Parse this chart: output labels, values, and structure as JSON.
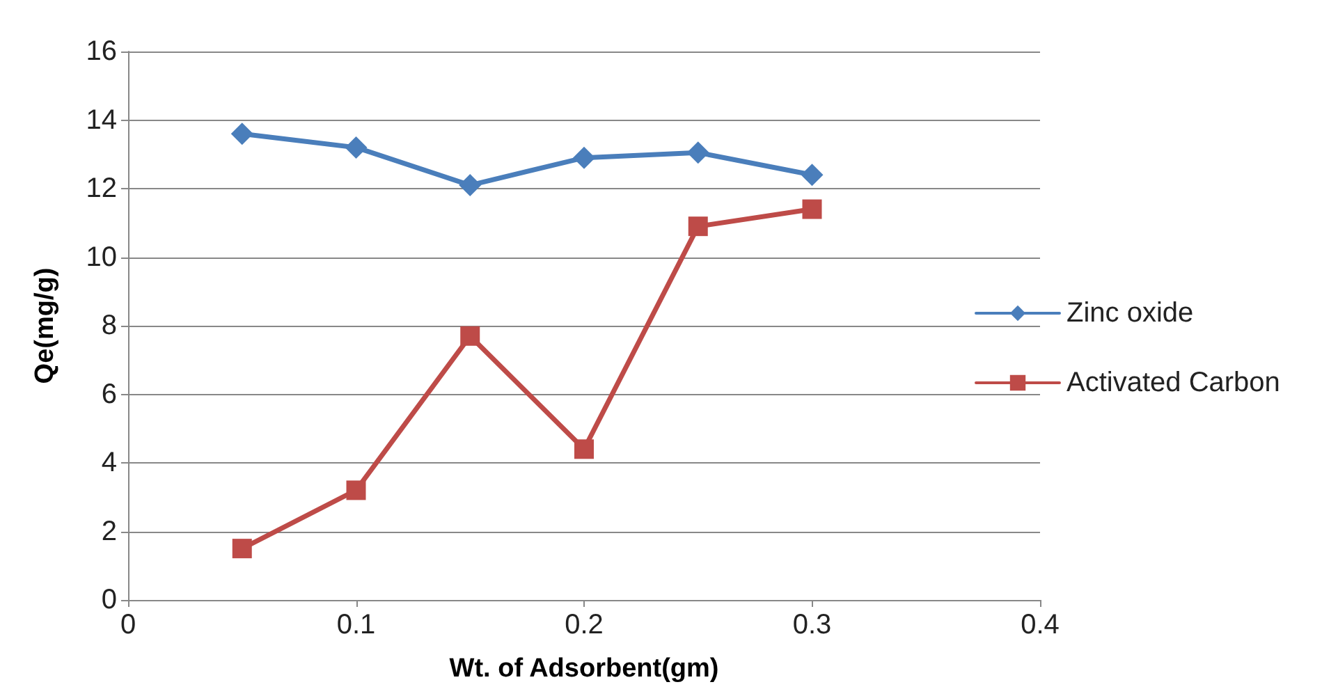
{
  "chart_data": {
    "type": "line",
    "xlabel": "Wt. of Adsorbent(gm)",
    "ylabel": "Qe(mg/g)",
    "x": [
      0.05,
      0.1,
      0.15,
      0.2,
      0.25,
      0.3
    ],
    "series": [
      {
        "name": "Zinc oxide",
        "color": "#4a7ebb",
        "marker": "diamond",
        "values": [
          13.6,
          13.2,
          12.1,
          12.9,
          13.05,
          12.4
        ]
      },
      {
        "name": "Activated Carbon",
        "color": "#be4b48",
        "marker": "square",
        "values": [
          1.5,
          3.2,
          7.7,
          4.4,
          10.9,
          11.4
        ]
      }
    ],
    "xlim": [
      0,
      0.4
    ],
    "xticks": [
      0,
      0.1,
      0.2,
      0.3,
      0.4
    ],
    "ylim": [
      0,
      16
    ],
    "yticks": [
      0,
      2,
      4,
      6,
      8,
      10,
      12,
      14,
      16
    ],
    "grid": "y",
    "legend": "right",
    "line_style": "solid"
  }
}
